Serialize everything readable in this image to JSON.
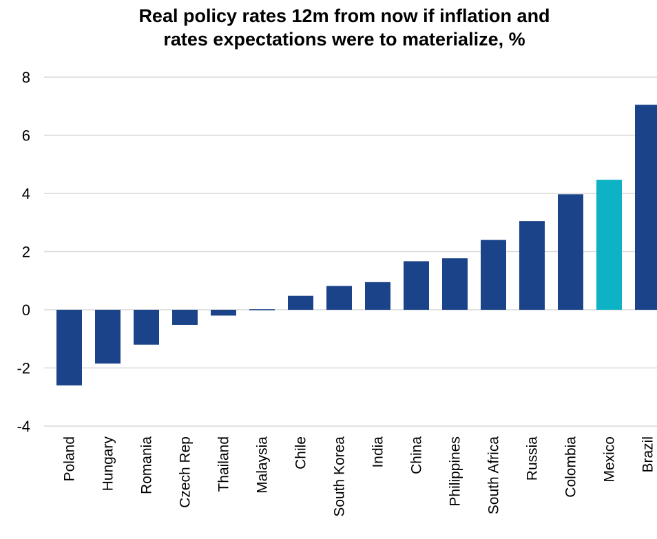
{
  "chart_data": {
    "type": "bar",
    "title_lines": [
      "Real policy rates 12m from now if inflation and",
      "rates expectations were to materialize, %"
    ],
    "categories": [
      "Poland",
      "Hungary",
      "Romania",
      "Czech Rep",
      "Thailand",
      "Malaysia",
      "Chile",
      "South Korea",
      "India",
      "China",
      "Philippines",
      "South Africa",
      "Russia",
      "Colombia",
      "Mexico",
      "Brazil"
    ],
    "values": [
      -2.6,
      -1.85,
      -1.2,
      -0.52,
      -0.2,
      0.02,
      0.48,
      0.82,
      0.95,
      1.67,
      1.77,
      2.4,
      3.05,
      3.97,
      4.47,
      7.05
    ],
    "highlight": "Mexico",
    "ylim": [
      -4,
      8
    ],
    "yticks": [
      "-4",
      "-2",
      "0",
      "2",
      "4",
      "6",
      "8"
    ],
    "grid": true,
    "legend": "none",
    "colors": {
      "bar": "#1b4389",
      "highlight": "#0db3c4",
      "grid": "#d9d9d9"
    }
  }
}
